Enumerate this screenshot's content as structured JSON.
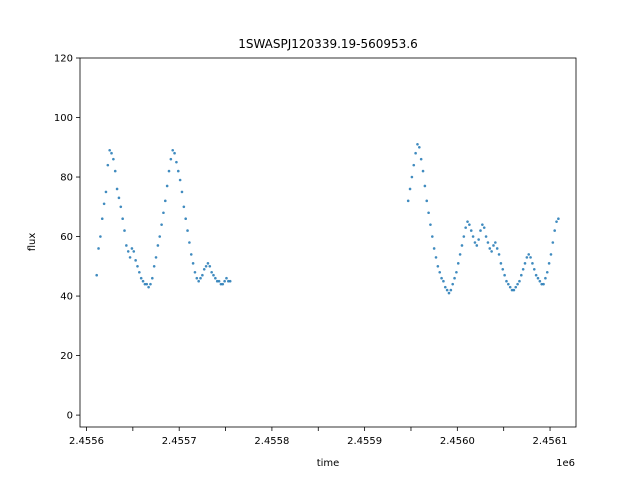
{
  "chart_data": {
    "type": "scatter",
    "title": "1SWASPJ120339.19-560953.6",
    "xlabel": "time",
    "ylabel": "flux",
    "x_offset_label": "1e6",
    "xlim": [
      2455593,
      2456128
    ],
    "ylim": [
      -4,
      120
    ],
    "xticks": [
      2455600,
      2455650,
      2455700,
      2455750,
      2455800,
      2455850,
      2455900,
      2455950,
      2456000,
      2456050,
      2456100
    ],
    "xtick_labels": [
      "2.4556",
      "",
      "2.4557",
      "",
      "2.4558",
      "",
      "2.4559",
      "",
      "2.4560",
      "",
      "2.4561"
    ],
    "yticks": [
      0,
      20,
      40,
      60,
      80,
      100,
      120
    ],
    "ytick_labels": [
      "0",
      "20",
      "40",
      "60",
      "80",
      "100",
      "120"
    ],
    "grid": false,
    "marker_color": "#1f77b4",
    "series": [
      {
        "name": "",
        "x": [
          2455611,
          2455613,
          2455615,
          2455617,
          2455619,
          2455621,
          2455623,
          2455625,
          2455627,
          2455629,
          2455631,
          2455633,
          2455635,
          2455637,
          2455639,
          2455641,
          2455643,
          2455645,
          2455647,
          2455649,
          2455651,
          2455653,
          2455655,
          2455657,
          2455659,
          2455661,
          2455663,
          2455665,
          2455667,
          2455669,
          2455671,
          2455673,
          2455675,
          2455677,
          2455679,
          2455681,
          2455683,
          2455685,
          2455687,
          2455689,
          2455691,
          2455693,
          2455695,
          2455697,
          2455699,
          2455701,
          2455703,
          2455705,
          2455707,
          2455709,
          2455711,
          2455713,
          2455715,
          2455717,
          2455719,
          2455721,
          2455723,
          2455725,
          2455727,
          2455729,
          2455731,
          2455733,
          2455735,
          2455737,
          2455739,
          2455741,
          2455743,
          2455745,
          2455747,
          2455749,
          2455751,
          2455753,
          2455755,
          2455947,
          2455949,
          2455951,
          2455953,
          2455955,
          2455957,
          2455959,
          2455961,
          2455963,
          2455965,
          2455967,
          2455969,
          2455971,
          2455973,
          2455975,
          2455977,
          2455979,
          2455981,
          2455983,
          2455985,
          2455987,
          2455989,
          2455991,
          2455993,
          2455995,
          2455997,
          2455999,
          2456001,
          2456003,
          2456005,
          2456007,
          2456009,
          2456011,
          2456013,
          2456015,
          2456017,
          2456019,
          2456021,
          2456023,
          2456025,
          2456027,
          2456029,
          2456031,
          2456033,
          2456035,
          2456037,
          2456039,
          2456041,
          2456043,
          2456045,
          2456047,
          2456049,
          2456051,
          2456053,
          2456055,
          2456057,
          2456059,
          2456061,
          2456063,
          2456065,
          2456067,
          2456069,
          2456071,
          2456073,
          2456075,
          2456077,
          2456079,
          2456081,
          2456083,
          2456085,
          2456087,
          2456089,
          2456091,
          2456093,
          2456095,
          2456097,
          2456099,
          2456101,
          2456103,
          2456105,
          2456107,
          2456109
        ],
        "y": [
          47,
          56,
          60,
          66,
          71,
          75,
          84,
          89,
          88,
          86,
          82,
          76,
          73,
          70,
          66,
          62,
          57,
          55,
          53,
          56,
          55,
          52,
          50,
          48,
          46,
          45,
          44,
          44,
          43,
          44,
          46,
          50,
          53,
          57,
          60,
          64,
          68,
          72,
          77,
          82,
          86,
          89,
          88,
          85,
          82,
          79,
          75,
          70,
          66,
          62,
          58,
          54,
          51,
          48,
          46,
          45,
          46,
          47,
          49,
          50,
          51,
          50,
          48,
          47,
          46,
          45,
          45,
          44,
          44,
          45,
          46,
          45,
          45,
          72,
          76,
          80,
          84,
          88,
          91,
          90,
          86,
          82,
          77,
          72,
          68,
          64,
          60,
          56,
          53,
          50,
          48,
          46,
          45,
          43,
          42,
          41,
          42,
          44,
          46,
          48,
          51,
          54,
          57,
          60,
          63,
          65,
          64,
          62,
          60,
          58,
          57,
          59,
          62,
          64,
          63,
          60,
          58,
          56,
          55,
          57,
          58,
          56,
          54,
          51,
          49,
          47,
          45,
          44,
          43,
          42,
          42,
          43,
          44,
          45,
          47,
          49,
          51,
          53,
          54,
          53,
          51,
          49,
          47,
          46,
          45,
          44,
          44,
          46,
          48,
          51,
          54,
          58,
          62,
          65,
          66
        ]
      }
    ]
  }
}
